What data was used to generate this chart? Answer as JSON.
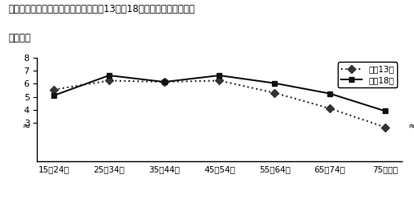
{
  "title_line1": "図３－２　年齢階級別仕事時間（平成13年，18年）一週全体，有業者",
  "title_line2": "（時間）",
  "categories": [
    "15～24歳",
    "25～34歳",
    "35～44歳",
    "45～54歳",
    "55～64歳",
    "65～74歳",
    "75歳以上"
  ],
  "series": [
    {
      "label": "平成13年",
      "values": [
        5.55,
        6.25,
        6.15,
        6.25,
        5.3,
        4.1,
        2.65
      ],
      "linestyle": "dotted",
      "marker": "D",
      "color": "#333333",
      "markersize": 5
    },
    {
      "label": "平成18年",
      "values": [
        5.1,
        6.65,
        6.15,
        6.65,
        6.05,
        5.25,
        3.9
      ],
      "linestyle": "solid",
      "marker": "s",
      "color": "#111111",
      "markersize": 5
    }
  ],
  "ylim": [
    0,
    8
  ],
  "yticks": [
    3,
    4,
    5,
    6,
    7,
    8
  ],
  "background_color": "#ffffff",
  "figsize": [
    5.16,
    2.58
  ],
  "dpi": 100,
  "break_symbol": "≈",
  "title_fontsize": 8.5,
  "label_fontsize": 7.5,
  "legend_fontsize": 7.5,
  "ytick_fontsize": 8,
  "linewidth": 1.5
}
